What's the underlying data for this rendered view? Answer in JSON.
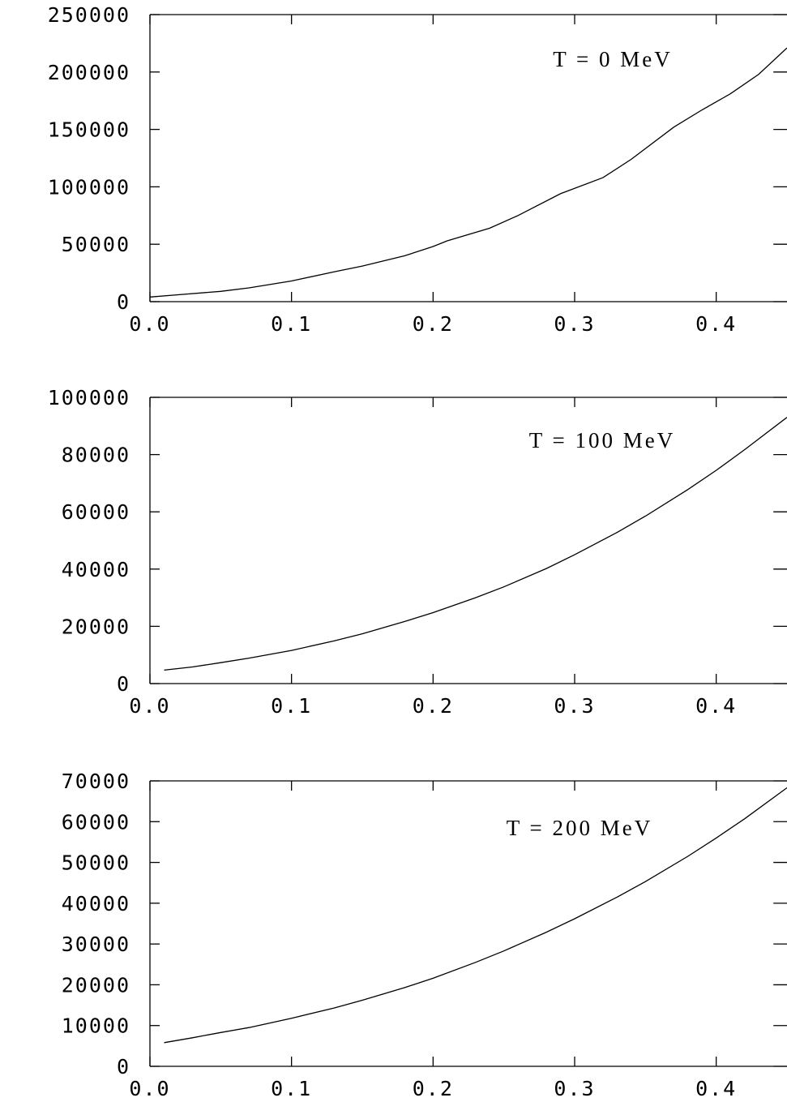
{
  "chart_data": [
    {
      "type": "line",
      "annotation": "T  =  0  MeV",
      "xlim": [
        0.0,
        0.45
      ],
      "ylim": [
        0,
        250000
      ],
      "x_ticks": [
        0.0,
        0.1,
        0.2,
        0.3,
        0.4
      ],
      "x_tick_labels": [
        "0.0",
        "0.1",
        "0.2",
        "0.3",
        "0.4"
      ],
      "y_ticks": [
        0,
        50000,
        100000,
        150000,
        200000,
        250000
      ],
      "y_tick_labels": [
        "0",
        "50000",
        "100000",
        "150000",
        "200000",
        "250000"
      ],
      "series": [
        {
          "x": [
            0.0,
            0.02,
            0.05,
            0.07,
            0.1,
            0.13,
            0.15,
            0.18,
            0.2,
            0.21,
            0.24,
            0.26,
            0.29,
            0.32,
            0.34,
            0.37,
            0.39,
            0.41,
            0.43,
            0.45
          ],
          "y": [
            4000,
            6000,
            9000,
            12000,
            18000,
            26000,
            31000,
            40000,
            48000,
            53000,
            64000,
            75000,
            94000,
            108000,
            124000,
            152000,
            167000,
            181000,
            198000,
            221000
          ]
        }
      ]
    },
    {
      "type": "line",
      "annotation": "T  =  100  MeV",
      "xlim": [
        0.0,
        0.45
      ],
      "ylim": [
        0,
        100000
      ],
      "x_ticks": [
        0.0,
        0.1,
        0.2,
        0.3,
        0.4
      ],
      "x_tick_labels": [
        "0.0",
        "0.1",
        "0.2",
        "0.3",
        "0.4"
      ],
      "y_ticks": [
        0,
        20000,
        40000,
        60000,
        80000,
        100000
      ],
      "y_tick_labels": [
        "0",
        "20000",
        "40000",
        "60000",
        "80000",
        "100000"
      ],
      "series": [
        {
          "x": [
            0.01,
            0.03,
            0.05,
            0.07,
            0.1,
            0.13,
            0.15,
            0.18,
            0.2,
            0.23,
            0.25,
            0.28,
            0.3,
            0.33,
            0.35,
            0.38,
            0.4,
            0.42,
            0.45
          ],
          "y": [
            4700,
            5800,
            7300,
            8900,
            11600,
            14900,
            17400,
            21700,
            24800,
            30000,
            33800,
            40200,
            45000,
            52800,
            58500,
            67800,
            74500,
            81700,
            93000
          ]
        }
      ]
    },
    {
      "type": "line",
      "annotation": "T  =  200  MeV",
      "xlim": [
        0.0,
        0.45
      ],
      "ylim": [
        0,
        70000
      ],
      "x_ticks": [
        0.0,
        0.1,
        0.2,
        0.3,
        0.4
      ],
      "x_tick_labels": [
        "0.0",
        "0.1",
        "0.2",
        "0.3",
        "0.4"
      ],
      "y_ticks": [
        0,
        10000,
        20000,
        30000,
        40000,
        50000,
        60000,
        70000
      ],
      "y_tick_labels": [
        "0",
        "10000",
        "20000",
        "30000",
        "40000",
        "50000",
        "60000",
        "70000"
      ],
      "series": [
        {
          "x": [
            0.01,
            0.03,
            0.05,
            0.07,
            0.1,
            0.13,
            0.15,
            0.18,
            0.2,
            0.23,
            0.25,
            0.28,
            0.3,
            0.33,
            0.35,
            0.38,
            0.4,
            0.42,
            0.45
          ],
          "y": [
            5800,
            7000,
            8300,
            9500,
            11800,
            14300,
            16200,
            19300,
            21600,
            25500,
            28300,
            32900,
            36200,
            41500,
            45300,
            51500,
            56000,
            60700,
            68300
          ]
        }
      ]
    }
  ]
}
